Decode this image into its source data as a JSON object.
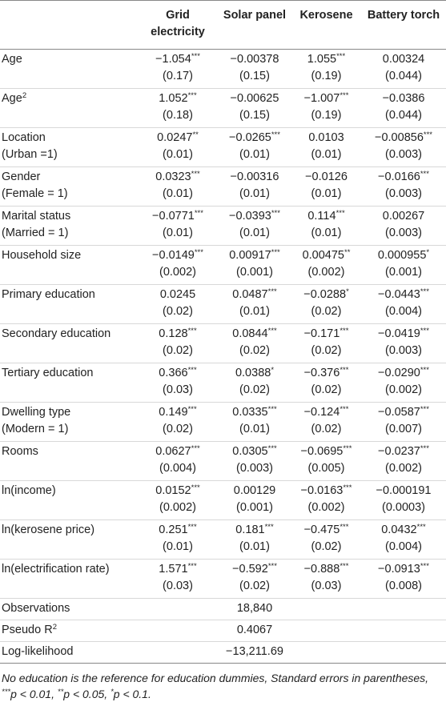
{
  "table": {
    "header": [
      "Grid electricity",
      "Solar panel",
      "Kerosene",
      "Battery torch"
    ],
    "rows": [
      {
        "label": "Age",
        "coef": [
          [
            "−1.054",
            "***"
          ],
          "−0.00378",
          [
            "1.055",
            "***"
          ],
          "0.00324"
        ],
        "se": [
          "(0.17)",
          "(0.15)",
          "(0.19)",
          "(0.044)"
        ]
      },
      {
        "label": "Age",
        "label_sup": "2",
        "coef": [
          [
            "1.052",
            "***"
          ],
          "−0.00625",
          [
            "−1.007",
            "***"
          ],
          "−0.0386"
        ],
        "se": [
          "(0.18)",
          "(0.15)",
          "(0.19)",
          "(0.044)"
        ]
      },
      {
        "label": "Location",
        "sublabel": "(Urban =1)",
        "coef": [
          [
            "0.0247",
            "**"
          ],
          [
            "−0.0265",
            "***"
          ],
          "0.0103",
          [
            "−0.00856",
            "***"
          ]
        ],
        "se": [
          "(0.01)",
          "(0.01)",
          "(0.01)",
          "(0.003)"
        ]
      },
      {
        "label": "Gender",
        "sublabel": "(Female = 1)",
        "coef": [
          [
            "0.0323",
            "***"
          ],
          "−0.00316",
          "−0.0126",
          [
            "−0.0166",
            "***"
          ]
        ],
        "se": [
          "(0.01)",
          "(0.01)",
          "(0.01)",
          "(0.003)"
        ]
      },
      {
        "label": "Marital status",
        "sublabel": "(Married = 1)",
        "coef": [
          [
            "−0.0771",
            "***"
          ],
          [
            "−0.0393",
            "***"
          ],
          [
            "0.114",
            "***"
          ],
          "0.00267"
        ],
        "se": [
          "(0.01)",
          "(0.01)",
          "(0.01)",
          "(0.003)"
        ]
      },
      {
        "label": "Household size",
        "coef": [
          [
            "−0.0149",
            "***"
          ],
          [
            "0.00917",
            "***"
          ],
          [
            "0.00475",
            "**"
          ],
          [
            "0.000955",
            "*"
          ]
        ],
        "se": [
          "(0.002)",
          "(0.001)",
          "(0.002)",
          "(0.001)"
        ]
      },
      {
        "label": "Primary education",
        "coef": [
          "0.0245",
          [
            "0.0487",
            "***"
          ],
          [
            "−0.0288",
            "*"
          ],
          [
            "−0.0443",
            "***"
          ]
        ],
        "se": [
          "(0.02)",
          "(0.01)",
          "(0.02)",
          "(0.004)"
        ]
      },
      {
        "label": "Secondary education",
        "coef": [
          [
            "0.128",
            "***"
          ],
          [
            "0.0844",
            "***"
          ],
          [
            "−0.171",
            "***"
          ],
          [
            "−0.0419",
            "***"
          ]
        ],
        "se": [
          "(0.02)",
          "(0.02)",
          "(0.02)",
          "(0.003)"
        ]
      },
      {
        "label": "Tertiary education",
        "coef": [
          [
            "0.366",
            "***"
          ],
          [
            "0.0388",
            "*"
          ],
          [
            "−0.376",
            "***"
          ],
          [
            "−0.0290",
            "***"
          ]
        ],
        "se": [
          "(0.03)",
          "(0.02)",
          "(0.02)",
          "(0.002)"
        ]
      },
      {
        "label": "Dwelling type",
        "sublabel": "(Modern = 1)",
        "coef": [
          [
            "0.149",
            "***"
          ],
          [
            "0.0335",
            "***"
          ],
          [
            "−0.124",
            "***"
          ],
          [
            "−0.0587",
            "***"
          ]
        ],
        "se": [
          "(0.02)",
          "(0.01)",
          "(0.02)",
          "(0.007)"
        ]
      },
      {
        "label": "Rooms",
        "coef": [
          [
            "0.0627",
            "***"
          ],
          [
            "0.0305",
            "***"
          ],
          [
            "−0.0695",
            "***"
          ],
          [
            "−0.0237",
            "***"
          ]
        ],
        "se": [
          "(0.004)",
          "(0.003)",
          "(0.005)",
          "(0.002)"
        ]
      },
      {
        "label": "ln(income)",
        "coef": [
          [
            "0.0152",
            "***"
          ],
          "0.00129",
          [
            "−0.0163",
            "***"
          ],
          "−0.000191"
        ],
        "se": [
          "(0.002)",
          "(0.001)",
          "(0.002)",
          "(0.0003)"
        ]
      },
      {
        "label": "ln(kerosene price)",
        "coef": [
          [
            "0.251",
            "***"
          ],
          [
            "0.181",
            "***"
          ],
          [
            "−0.475",
            "***"
          ],
          [
            "0.0432",
            "***"
          ]
        ],
        "se": [
          "(0.01)",
          "(0.01)",
          "(0.02)",
          "(0.004)"
        ]
      },
      {
        "label": "ln(electrification rate)",
        "coef": [
          [
            "1.571",
            "***"
          ],
          [
            "−0.592",
            "***"
          ],
          [
            "−0.888",
            "***"
          ],
          [
            "−0.0913",
            "***"
          ]
        ],
        "se": [
          "(0.03)",
          "(0.02)",
          "(0.03)",
          "(0.008)"
        ]
      }
    ],
    "stats": [
      {
        "label": "Observations",
        "value": "18,840"
      },
      {
        "label": "Pseudo R",
        "label_sup": "2",
        "value": "0.4067"
      },
      {
        "label": "Log-likelihood",
        "value": "−13,211.69"
      }
    ]
  },
  "note": {
    "text": "No education is the reference for education dummies, Standard errors in parentheses,",
    "items": [
      [
        "***",
        "p < 0.01,"
      ],
      [
        "**",
        "p < 0.05,"
      ],
      [
        "*",
        "p < 0.1."
      ]
    ]
  }
}
